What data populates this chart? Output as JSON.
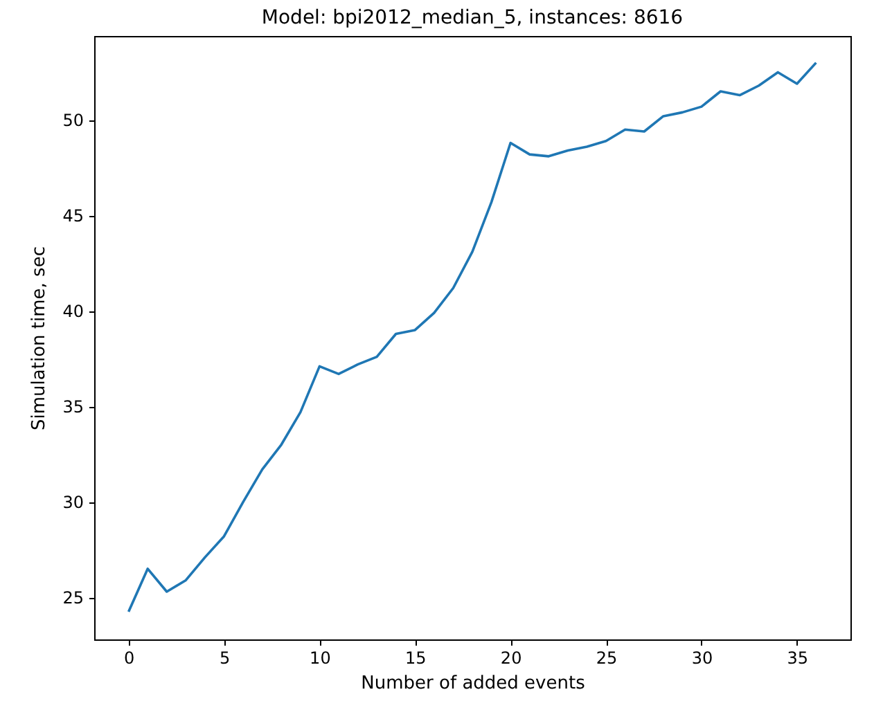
{
  "chart_data": {
    "type": "line",
    "title": "Model: bpi2012_median_5, instances: 8616",
    "xlabel": "Number of added events",
    "ylabel": "Simulation time, sec",
    "x": [
      0,
      1,
      2,
      3,
      4,
      5,
      6,
      7,
      8,
      9,
      10,
      11,
      12,
      13,
      14,
      15,
      16,
      17,
      18,
      19,
      20,
      21,
      22,
      23,
      24,
      25,
      26,
      27,
      28,
      29,
      30,
      31,
      32,
      33,
      34,
      35,
      36
    ],
    "series": [
      {
        "color": "#1f77b4",
        "values": [
          24.25,
          26.5,
          25.3,
          25.9,
          27.1,
          28.2,
          30.0,
          31.7,
          33.0,
          34.7,
          37.1,
          36.7,
          37.2,
          37.6,
          38.8,
          39.0,
          39.9,
          41.2,
          43.1,
          45.7,
          48.8,
          48.2,
          48.1,
          48.4,
          48.6,
          48.9,
          49.5,
          49.4,
          50.2,
          50.4,
          50.7,
          51.5,
          51.3,
          51.8,
          52.5,
          51.9,
          53.0
        ]
      }
    ],
    "xlim": [
      -1.8,
      37.8
    ],
    "ylim": [
      22.8,
      54.4
    ],
    "xticks": [
      0,
      5,
      10,
      15,
      20,
      25,
      30,
      35
    ],
    "yticks": [
      25,
      30,
      35,
      40,
      45,
      50
    ],
    "grid": false
  }
}
